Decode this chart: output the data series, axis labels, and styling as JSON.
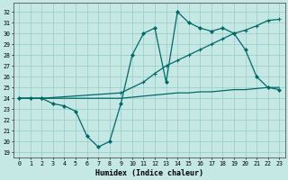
{
  "xlabel": "Humidex (Indice chaleur)",
  "bg_color": "#c5e8e5",
  "grid_color": "#9ecfcb",
  "line_color": "#006868",
  "xlim": [
    -0.5,
    23.5
  ],
  "ylim": [
    18.5,
    32.8
  ],
  "yticks": [
    19,
    20,
    21,
    22,
    23,
    24,
    25,
    26,
    27,
    28,
    29,
    30,
    31,
    32
  ],
  "xticks": [
    0,
    1,
    2,
    3,
    4,
    5,
    6,
    7,
    8,
    9,
    10,
    11,
    12,
    13,
    14,
    15,
    16,
    17,
    18,
    19,
    20,
    21,
    22,
    23
  ],
  "line1_x": [
    0,
    1,
    2,
    3,
    4,
    5,
    6,
    7,
    8,
    9,
    10,
    11,
    12,
    13,
    14,
    15,
    16,
    17,
    18,
    19,
    20,
    21,
    22,
    23
  ],
  "line1_y": [
    24,
    24,
    24,
    23.5,
    23.3,
    22.8,
    20.5,
    19.5,
    20,
    23.5,
    28,
    30,
    30.5,
    25.5,
    32,
    31,
    30.5,
    30.2,
    30.5,
    30,
    28.5,
    26,
    25,
    24.8
  ],
  "line2_x": [
    0,
    2,
    9,
    11,
    12,
    13,
    14,
    15,
    16,
    17,
    18,
    19,
    20,
    21,
    22,
    23
  ],
  "line2_y": [
    24,
    24,
    24.5,
    25.5,
    26.3,
    27,
    27.5,
    28,
    28.5,
    29,
    29.5,
    30,
    30.3,
    30.7,
    31.2,
    31.3
  ],
  "line3_x": [
    0,
    1,
    2,
    3,
    4,
    5,
    6,
    7,
    8,
    9,
    10,
    11,
    12,
    13,
    14,
    15,
    16,
    17,
    18,
    19,
    20,
    21,
    22,
    23
  ],
  "line3_y": [
    24,
    24,
    24,
    24,
    24,
    24,
    24,
    24,
    24,
    24,
    24.1,
    24.2,
    24.3,
    24.4,
    24.5,
    24.5,
    24.6,
    24.6,
    24.7,
    24.8,
    24.8,
    24.9,
    25,
    25
  ]
}
